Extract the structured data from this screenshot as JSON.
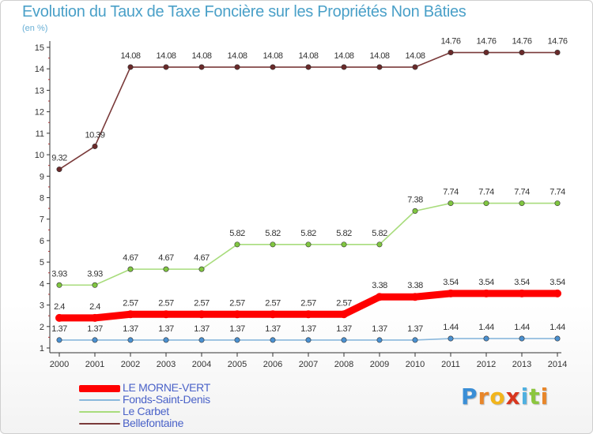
{
  "header": {
    "title": "Evolution du Taux de Taxe Foncière sur les Propriétés Non Bâties",
    "subtitle": "(en %)"
  },
  "brand": {
    "letters": [
      "P",
      "r",
      "o",
      "x",
      "i",
      "t",
      "i"
    ],
    "colors": [
      "#3a8ed6",
      "#e8862a",
      "#f2b51c",
      "#d8361e",
      "#4fb0e0",
      "#8cc63f",
      "#e8862a"
    ]
  },
  "chart_data": {
    "type": "line",
    "title": "Evolution du Taux de Taxe Foncière sur les Propriétés Non Bâties",
    "ylabel": "(en %)",
    "xlabel": "",
    "ylim": [
      1,
      15
    ],
    "yticks": [
      1,
      2,
      3,
      4,
      5,
      6,
      7,
      8,
      9,
      10,
      11,
      12,
      13,
      14,
      15
    ],
    "x": [
      "2000",
      "2001",
      "2002",
      "2003",
      "2004",
      "2005",
      "2006",
      "2007",
      "2008",
      "2009",
      "2010",
      "2011",
      "2012",
      "2013",
      "2014"
    ],
    "legend_position": "bottom-left",
    "grid": false,
    "series": [
      {
        "name": "Bellefontaine",
        "color": "#7a3a3a",
        "marker": "#6a2a2a",
        "values": [
          9.32,
          10.39,
          14.08,
          14.08,
          14.08,
          14.08,
          14.08,
          14.08,
          14.08,
          14.08,
          14.08,
          14.76,
          14.76,
          14.76,
          14.76
        ],
        "labels": [
          "9.32",
          "10.39",
          "14.08",
          "14.08",
          "14.08",
          "14.08",
          "14.08",
          "14.08",
          "14.08",
          "14.08",
          "14.08",
          "14.76",
          "14.76",
          "14.76",
          "14.76"
        ]
      },
      {
        "name": "Le Carbet",
        "color": "#a8dc7c",
        "marker": "#80c640",
        "values": [
          3.93,
          3.93,
          4.67,
          4.67,
          4.67,
          5.82,
          5.82,
          5.82,
          5.82,
          5.82,
          7.38,
          7.74,
          7.74,
          7.74,
          7.74
        ],
        "labels": [
          "3.93",
          "3.93",
          "4.67",
          "4.67",
          "4.67",
          "5.82",
          "5.82",
          "5.82",
          "5.82",
          "5.82",
          "7.38",
          "7.74",
          "7.74",
          "7.74",
          "7.74"
        ]
      },
      {
        "name": "Fonds-Saint-Denis",
        "color": "#8ab8dc",
        "marker": "#4a90d0",
        "values": [
          1.37,
          1.37,
          1.37,
          1.37,
          1.37,
          1.37,
          1.37,
          1.37,
          1.37,
          1.37,
          1.37,
          1.44,
          1.44,
          1.44,
          1.44
        ],
        "labels": [
          "1.37",
          "1.37",
          "1.37",
          "1.37",
          "1.37",
          "1.37",
          "1.37",
          "1.37",
          "1.37",
          "1.37",
          "1.37",
          "1.44",
          "1.44",
          "1.44",
          "1.44"
        ]
      },
      {
        "name": "LE MORNE-VERT",
        "color": "#ff0000",
        "marker": "#ff0000",
        "values": [
          2.4,
          2.4,
          2.57,
          2.57,
          2.57,
          2.57,
          2.57,
          2.57,
          2.57,
          3.38,
          3.38,
          3.54,
          3.54,
          3.54,
          3.54
        ],
        "labels": [
          "2.4",
          "2.4",
          "2.57",
          "2.57",
          "2.57",
          "2.57",
          "2.57",
          "2.57",
          "2.57",
          "3.38",
          "3.38",
          "3.54",
          "3.54",
          "3.54",
          "3.54"
        ]
      }
    ],
    "legend": [
      "LE MORNE-VERT",
      "Fonds-Saint-Denis",
      "Le Carbet",
      "Bellefontaine"
    ]
  }
}
